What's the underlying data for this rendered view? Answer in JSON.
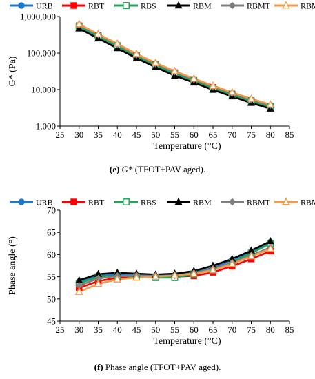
{
  "legend_labels": [
    "URB",
    "RBT",
    "RBS",
    "RBM",
    "RBMT",
    "RBMS"
  ],
  "series_styles": [
    {
      "color": "#1f77c8",
      "marker": "circle-filled"
    },
    {
      "color": "#ff0000",
      "marker": "square-filled"
    },
    {
      "color": "#21a45a",
      "marker": "square-open"
    },
    {
      "color": "#000000",
      "marker": "triangle-filled"
    },
    {
      "color": "#7f7f7f",
      "marker": "diamond-filled"
    },
    {
      "color": "#f39a4a",
      "marker": "triangle-open"
    }
  ],
  "captions": {
    "top_letter": "(e)",
    "top_italic": "G*",
    "top_rest": "(TFOT+PAV aged).",
    "bottom_letter": "(f)",
    "bottom_rest": "Phase angle (TFOT+PAV aged)."
  },
  "chart_data": [
    {
      "type": "line",
      "ylabel": "G* (Pa)",
      "xlabel": "Temperature (°C)",
      "yscale": "log",
      "xlim": [
        25,
        85
      ],
      "ylim": [
        1000,
        1000000
      ],
      "xticks": [
        25,
        30,
        35,
        40,
        45,
        50,
        55,
        60,
        65,
        70,
        75,
        80,
        85
      ],
      "yticks": [
        1000,
        10000,
        100000,
        1000000
      ],
      "ytick_labels": [
        "1,000",
        "10,000",
        "100,000",
        "1,000,000"
      ],
      "legend": "top",
      "grid": false,
      "x": [
        30,
        35,
        40,
        45,
        50,
        55,
        60,
        65,
        70,
        75,
        80
      ],
      "series": [
        {
          "name": "URB",
          "values": [
            520000,
            280000,
            150000,
            80000,
            45000,
            27000,
            17000,
            10500,
            7000,
            4700,
            3300
          ]
        },
        {
          "name": "RBT",
          "values": [
            560000,
            300000,
            160000,
            85000,
            48000,
            29000,
            18000,
            11500,
            7600,
            5000,
            3500
          ]
        },
        {
          "name": "RBS",
          "values": [
            540000,
            290000,
            155000,
            82000,
            46000,
            28000,
            17500,
            11000,
            7300,
            4800,
            3400
          ]
        },
        {
          "name": "RBM",
          "values": [
            470000,
            250000,
            135000,
            72000,
            41000,
            24000,
            15500,
            9800,
            6500,
            4300,
            3000
          ]
        },
        {
          "name": "RBMT",
          "values": [
            590000,
            320000,
            170000,
            90000,
            51000,
            31000,
            19000,
            12000,
            8000,
            5300,
            3700
          ]
        },
        {
          "name": "RBMS",
          "values": [
            620000,
            330000,
            180000,
            95000,
            54000,
            32000,
            20000,
            12800,
            8400,
            5600,
            3900
          ]
        }
      ]
    },
    {
      "type": "line",
      "ylabel": "Phase angle (°)",
      "xlabel": "Temperature (°C)",
      "xlim": [
        25,
        85
      ],
      "ylim": [
        45,
        70
      ],
      "xticks": [
        25,
        30,
        35,
        40,
        45,
        50,
        55,
        60,
        65,
        70,
        75,
        80,
        85
      ],
      "yticks": [
        45,
        50,
        55,
        60,
        65,
        70
      ],
      "legend": "top",
      "grid": false,
      "x": [
        30,
        35,
        40,
        45,
        50,
        55,
        60,
        65,
        70,
        75,
        80
      ],
      "series": [
        {
          "name": "URB",
          "values": [
            53.8,
            55.2,
            55.5,
            55.3,
            55.0,
            55.3,
            56.0,
            57.0,
            58.8,
            60.6,
            62.8
          ]
        },
        {
          "name": "RBT",
          "values": [
            52.5,
            54.0,
            54.8,
            55.0,
            55.0,
            55.0,
            55.2,
            56.0,
            57.4,
            59.0,
            60.8
          ]
        },
        {
          "name": "RBS",
          "values": [
            53.5,
            55.0,
            55.2,
            55.0,
            54.8,
            54.8,
            55.6,
            56.6,
            58.3,
            60.3,
            62.5
          ]
        },
        {
          "name": "RBM",
          "values": [
            54.2,
            55.6,
            55.9,
            55.7,
            55.5,
            55.7,
            56.3,
            57.5,
            59.0,
            60.9,
            63.0
          ]
        },
        {
          "name": "RBMT",
          "values": [
            53.0,
            54.6,
            55.2,
            55.3,
            55.2,
            55.3,
            55.8,
            56.8,
            58.2,
            59.8,
            61.6
          ]
        },
        {
          "name": "RBMS",
          "values": [
            51.6,
            53.4,
            54.4,
            54.8,
            55.0,
            55.3,
            55.7,
            56.5,
            57.9,
            59.6,
            61.3
          ]
        }
      ]
    }
  ]
}
